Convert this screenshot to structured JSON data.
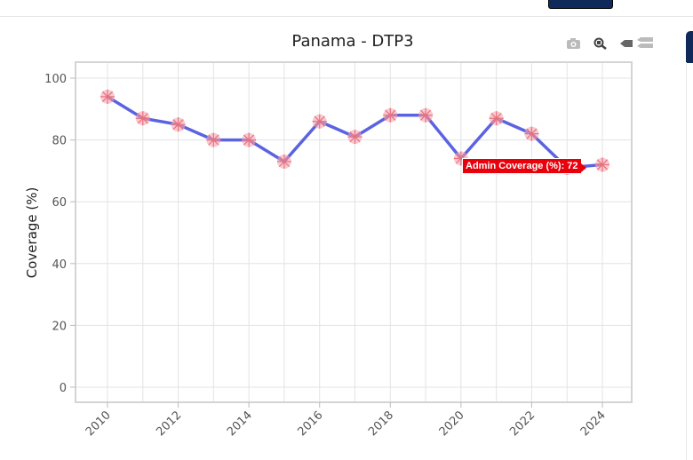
{
  "chart_data": {
    "type": "line",
    "title": "Panama - DTP3",
    "xlabel": "",
    "ylabel": "Coverage (%)",
    "x": [
      2010,
      2011,
      2012,
      2013,
      2014,
      2015,
      2016,
      2017,
      2018,
      2019,
      2020,
      2021,
      2022,
      2023,
      2024
    ],
    "series": [
      {
        "values": [
          94,
          87,
          85,
          80,
          80,
          73,
          86,
          81,
          88,
          88,
          74,
          87,
          82,
          71,
          72
        ],
        "color": "#5b63e0",
        "marker_color": "#f4a6b0"
      }
    ],
    "xticks": [
      2010,
      2012,
      2014,
      2016,
      2018,
      2020,
      2022,
      2024
    ],
    "yticks": [
      0,
      20,
      40,
      60,
      80,
      100
    ],
    "xlim": [
      2009,
      2025.8
    ],
    "ylim": [
      -5,
      105
    ],
    "grid": true,
    "tooltip": "Admin Coverage (%): 72"
  },
  "toolbar": {
    "icons": [
      "camera-icon",
      "zoom-icon",
      "hover-closest-icon",
      "hover-compare-icon"
    ]
  }
}
